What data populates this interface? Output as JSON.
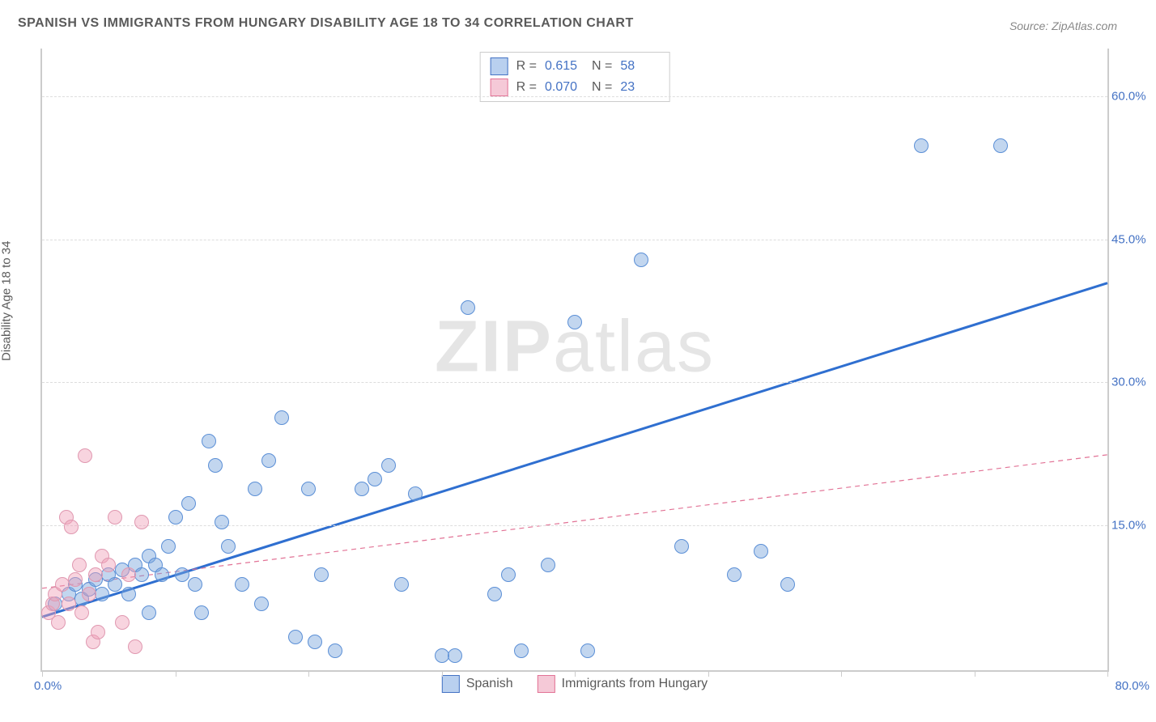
{
  "title": "SPANISH VS IMMIGRANTS FROM HUNGARY DISABILITY AGE 18 TO 34 CORRELATION CHART",
  "source": "Source: ZipAtlas.com",
  "watermark_bold": "ZIP",
  "watermark_rest": "atlas",
  "ylabel": "Disability Age 18 to 34",
  "chart": {
    "type": "scatter",
    "background_color": "#ffffff",
    "grid_color": "#dddddd",
    "axis_color": "#cccccc",
    "xlim": [
      0,
      80
    ],
    "ylim": [
      0,
      65
    ],
    "ytick_values": [
      15,
      30,
      45,
      60
    ],
    "ytick_labels": [
      "15.0%",
      "30.0%",
      "45.0%",
      "60.0%"
    ],
    "xtick_values": [
      0,
      10,
      20,
      30,
      40,
      50,
      60,
      70,
      80
    ],
    "xaxis_label_left": "0.0%",
    "xaxis_label_right": "80.0%",
    "marker_radius": 9,
    "marker_border_width": 1.2,
    "series": [
      {
        "name": "Spanish",
        "fill_color": "rgba(120,165,220,0.45)",
        "stroke_color": "#5b8fd6",
        "swatch_fill": "#b9d0ef",
        "swatch_border": "#4472c4",
        "R": "0.615",
        "N": "58",
        "trend": {
          "x1": 0,
          "y1": 5.5,
          "x2": 80,
          "y2": 40.5,
          "color": "#2f6fd0",
          "width": 3,
          "dash": "none"
        },
        "points": [
          [
            1,
            7
          ],
          [
            2,
            8
          ],
          [
            2.5,
            9
          ],
          [
            3,
            7.5
          ],
          [
            3.5,
            8.5
          ],
          [
            4,
            9.5
          ],
          [
            4.5,
            8
          ],
          [
            5,
            10
          ],
          [
            5.5,
            9
          ],
          [
            6,
            10.5
          ],
          [
            6.5,
            8
          ],
          [
            7,
            11
          ],
          [
            7.5,
            10
          ],
          [
            8,
            12
          ],
          [
            8.5,
            11
          ],
          [
            9,
            10
          ],
          [
            9.5,
            13
          ],
          [
            10,
            16
          ],
          [
            10.5,
            10
          ],
          [
            11,
            17.5
          ],
          [
            11.5,
            9
          ],
          [
            12,
            6
          ],
          [
            12.5,
            24
          ],
          [
            13,
            21.5
          ],
          [
            14,
            13
          ],
          [
            15,
            9
          ],
          [
            16,
            19
          ],
          [
            16.5,
            7
          ],
          [
            17,
            22
          ],
          [
            18,
            26.5
          ],
          [
            19,
            3.5
          ],
          [
            20,
            19
          ],
          [
            20.5,
            3
          ],
          [
            21,
            10
          ],
          [
            22,
            2
          ],
          [
            24,
            19
          ],
          [
            25,
            20
          ],
          [
            26,
            21.5
          ],
          [
            27,
            9
          ],
          [
            28,
            18.5
          ],
          [
            30,
            1.5
          ],
          [
            31,
            1.5
          ],
          [
            32,
            38
          ],
          [
            34,
            8
          ],
          [
            35,
            10
          ],
          [
            36,
            2
          ],
          [
            38,
            11
          ],
          [
            40,
            36.5
          ],
          [
            41,
            2
          ],
          [
            45,
            43
          ],
          [
            48,
            13
          ],
          [
            52,
            10
          ],
          [
            54,
            12.5
          ],
          [
            66,
            55
          ],
          [
            72,
            55
          ],
          [
            56,
            9
          ],
          [
            8,
            6
          ],
          [
            13.5,
            15.5
          ]
        ]
      },
      {
        "name": "Immigrants from Hungary",
        "fill_color": "rgba(240,160,185,0.45)",
        "stroke_color": "#e098b0",
        "swatch_fill": "#f5c9d7",
        "swatch_border": "#e27396",
        "R": "0.070",
        "N": "23",
        "trend": {
          "x1": 0,
          "y1": 8.5,
          "x2": 80,
          "y2": 22.5,
          "color": "#e27396",
          "width": 1.2,
          "dash": "6,5"
        },
        "points": [
          [
            0.5,
            6
          ],
          [
            0.8,
            7
          ],
          [
            1,
            8
          ],
          [
            1.2,
            5
          ],
          [
            1.5,
            9
          ],
          [
            1.8,
            16
          ],
          [
            2,
            7
          ],
          [
            2.2,
            15
          ],
          [
            2.5,
            9.5
          ],
          [
            2.8,
            11
          ],
          [
            3,
            6
          ],
          [
            3.2,
            22.5
          ],
          [
            3.5,
            8
          ],
          [
            3.8,
            3
          ],
          [
            4,
            10
          ],
          [
            4.2,
            4
          ],
          [
            4.5,
            12
          ],
          [
            5,
            11
          ],
          [
            5.5,
            16
          ],
          [
            6,
            5
          ],
          [
            6.5,
            10
          ],
          [
            7,
            2.5
          ],
          [
            7.5,
            15.5
          ]
        ]
      }
    ]
  },
  "stat_legend": {
    "r_label": "R  =",
    "n_label": "N  ="
  },
  "series_legend_labels": [
    "Spanish",
    "Immigrants from Hungary"
  ]
}
